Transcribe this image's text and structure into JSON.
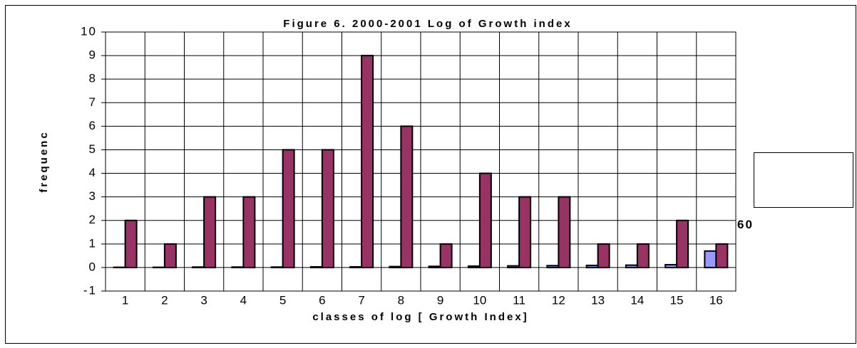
{
  "chart_data": {
    "type": "bar",
    "title": "Figure 6. 2000-2001 Log of Growth index",
    "x_label": "classes of log [ Growth Index]",
    "y_label": "frequenc",
    "annotation": "60",
    "categories": [
      "1",
      "2",
      "3",
      "4",
      "5",
      "6",
      "7",
      "8",
      "9",
      "10",
      "11",
      "12",
      "13",
      "14",
      "15",
      "16"
    ],
    "series": [
      {
        "color": "#9999ff",
        "values": [
          0.01,
          0.01,
          0.02,
          0.02,
          0.02,
          0.03,
          0.03,
          0.04,
          0.05,
          0.06,
          0.07,
          0.08,
          0.09,
          0.1,
          0.12,
          0.7
        ]
      },
      {
        "color": "#993366",
        "values": [
          2,
          1,
          3,
          3,
          5,
          5,
          9,
          6,
          1,
          4,
          3,
          3,
          1,
          1,
          2,
          1
        ]
      }
    ],
    "ylim": [
      -1,
      10
    ],
    "yticks": [
      -1,
      0,
      1,
      2,
      3,
      4,
      5,
      6,
      7,
      8,
      9,
      10
    ],
    "grid": true
  }
}
